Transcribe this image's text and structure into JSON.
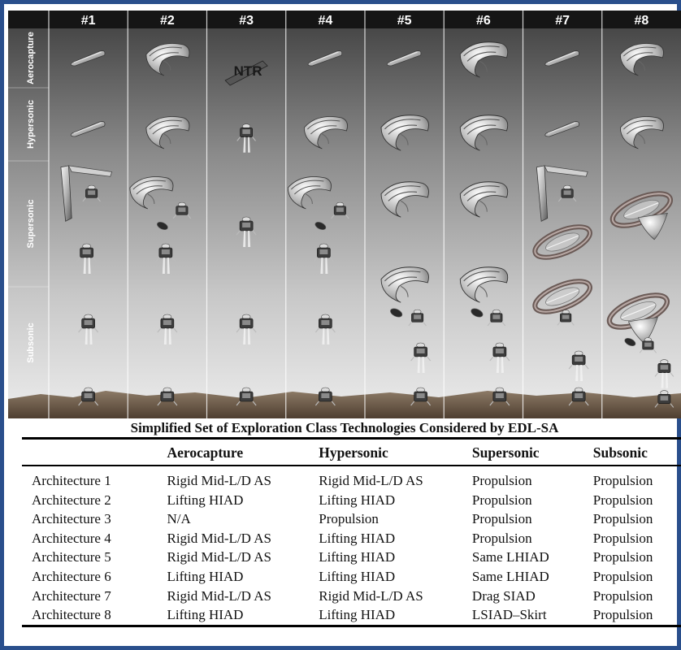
{
  "diagram": {
    "columns": [
      "#1",
      "#2",
      "#3",
      "#4",
      "#5",
      "#6",
      "#7",
      "#8"
    ],
    "phases": [
      "Aerocapture",
      "Hypersonic",
      "Supersonic",
      "Subsonic"
    ],
    "ntr_label": "NTR",
    "colors": {
      "header_bg": "#151515",
      "header_text": "#ffffff",
      "sky_top": "#4a4a4a",
      "sky_bottom": "#e6e6e6",
      "ground": "#6d5a48"
    }
  },
  "table": {
    "caption": "Simplified Set of Exploration Class Technologies Considered by EDL-SA",
    "headers": [
      "",
      "Aerocapture",
      "Hypersonic",
      "Supersonic",
      "Subsonic"
    ],
    "rows": [
      [
        "Architecture 1",
        "Rigid Mid-L/D AS",
        "Rigid Mid-L/D AS",
        "Propulsion",
        "Propulsion"
      ],
      [
        "Architecture 2",
        "Lifting HIAD",
        "Lifting HIAD",
        "Propulsion",
        "Propulsion"
      ],
      [
        "Architecture 3",
        "N/A",
        "Propulsion",
        "Propulsion",
        "Propulsion"
      ],
      [
        "Architecture 4",
        "Rigid Mid-L/D AS",
        "Lifting HIAD",
        "Propulsion",
        "Propulsion"
      ],
      [
        "Architecture 5",
        "Rigid Mid-L/D AS",
        "Lifting HIAD",
        "Same LHIAD",
        "Propulsion"
      ],
      [
        "Architecture 6",
        "Lifting HIAD",
        "Lifting HIAD",
        "Same LHIAD",
        "Propulsion"
      ],
      [
        "Architecture 7",
        "Rigid Mid-L/D AS",
        "Rigid Mid-L/D AS",
        "Drag SIAD",
        "Propulsion"
      ],
      [
        "Architecture 8",
        "Lifting HIAD",
        "Lifting HIAD",
        "LSIAD–Skirt",
        "Propulsion"
      ]
    ]
  }
}
